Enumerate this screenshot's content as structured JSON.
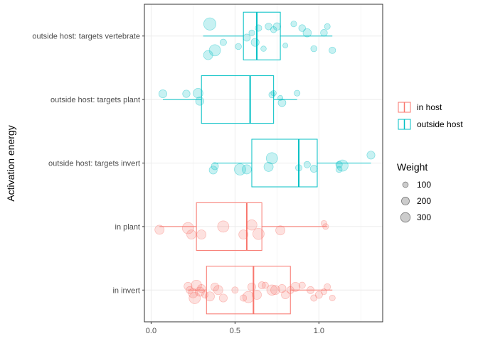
{
  "chart_data": {
    "type": "boxplot",
    "orientation": "horizontal",
    "ylabel": "Activation energy",
    "xlabel": "",
    "xlim": [
      -0.04,
      1.38
    ],
    "x_ticks": [
      0,
      0.5,
      1
    ],
    "x_tick_labels": [
      "0.0",
      "0.5",
      "1.0"
    ],
    "grid": true,
    "legend_placement": "right",
    "legend": {
      "color_entries": [
        {
          "label": "in host",
          "color": "#F8766D"
        },
        {
          "label": "outside host",
          "color": "#00BFC4"
        }
      ],
      "size_title": "Weight",
      "size_entries": [
        {
          "label": "100",
          "value": 100
        },
        {
          "label": "200",
          "value": 200
        },
        {
          "label": "300",
          "value": 300
        }
      ]
    },
    "categories": [
      "outside host: targets vertebrate",
      "outside host: targets plant",
      "outside host: targets invert",
      "in plant",
      "in invert"
    ],
    "boxes": [
      {
        "category": "outside host: targets vertebrate",
        "group": "outside host",
        "whisker_low": 0.31,
        "q1": 0.55,
        "median": 0.63,
        "q3": 0.77,
        "whisker_high": 1.08
      },
      {
        "category": "outside host: targets plant",
        "group": "outside host",
        "whisker_low": 0.07,
        "q1": 0.3,
        "median": 0.59,
        "q3": 0.73,
        "whisker_high": 0.87
      },
      {
        "category": "outside host: targets invert",
        "group": "outside host",
        "whisker_low": 0.37,
        "q1": 0.6,
        "median": 0.88,
        "q3": 0.99,
        "whisker_high": 1.31
      },
      {
        "category": "in plant",
        "group": "in host",
        "whisker_low": 0.05,
        "q1": 0.27,
        "median": 0.57,
        "q3": 0.66,
        "whisker_high": 1.05
      },
      {
        "category": "in invert",
        "group": "in host",
        "whisker_low": 0.22,
        "q1": 0.33,
        "median": 0.61,
        "q3": 0.83,
        "whisker_high": 1.08
      }
    ],
    "points": [
      {
        "category": "outside host: targets vertebrate",
        "x": 0.34,
        "y": 0.6,
        "weight": 200
      },
      {
        "category": "outside host: targets vertebrate",
        "x": 0.38,
        "y": 0.45,
        "weight": 300
      },
      {
        "category": "outside host: targets vertebrate",
        "x": 0.35,
        "y": -0.38,
        "weight": 350
      },
      {
        "category": "outside host: targets vertebrate",
        "x": 0.43,
        "y": 0.2,
        "weight": 100
      },
      {
        "category": "outside host: targets vertebrate",
        "x": 0.52,
        "y": 0.33,
        "weight": 90
      },
      {
        "category": "outside host: targets vertebrate",
        "x": 0.57,
        "y": 0.05,
        "weight": 120
      },
      {
        "category": "outside host: targets vertebrate",
        "x": 0.6,
        "y": -0.1,
        "weight": 80
      },
      {
        "category": "outside host: targets vertebrate",
        "x": 0.62,
        "y": 0.2,
        "weight": 150
      },
      {
        "category": "outside host: targets vertebrate",
        "x": 0.64,
        "y": -0.25,
        "weight": 100
      },
      {
        "category": "outside host: targets vertebrate",
        "x": 0.67,
        "y": 0.4,
        "weight": 70
      },
      {
        "category": "outside host: targets vertebrate",
        "x": 0.7,
        "y": -0.3,
        "weight": 110
      },
      {
        "category": "outside host: targets vertebrate",
        "x": 0.73,
        "y": -0.2,
        "weight": 90
      },
      {
        "category": "outside host: targets vertebrate",
        "x": 0.75,
        "y": -0.3,
        "weight": 130
      },
      {
        "category": "outside host: targets vertebrate",
        "x": 0.8,
        "y": 0.3,
        "weight": 60
      },
      {
        "category": "outside host: targets vertebrate",
        "x": 0.85,
        "y": -0.38,
        "weight": 80
      },
      {
        "category": "outside host: targets vertebrate",
        "x": 0.9,
        "y": -0.25,
        "weight": 110
      },
      {
        "category": "outside host: targets vertebrate",
        "x": 0.93,
        "y": -0.1,
        "weight": 160
      },
      {
        "category": "outside host: targets vertebrate",
        "x": 0.97,
        "y": 0.4,
        "weight": 90
      },
      {
        "category": "outside host: targets vertebrate",
        "x": 1.03,
        "y": -0.1,
        "weight": 110
      },
      {
        "category": "outside host: targets vertebrate",
        "x": 1.05,
        "y": -0.3,
        "weight": 80
      },
      {
        "category": "outside host: targets vertebrate",
        "x": 1.08,
        "y": 0.45,
        "weight": 100
      },
      {
        "category": "outside host: targets plant",
        "x": 0.07,
        "y": -0.18,
        "weight": 150
      },
      {
        "category": "outside host: targets plant",
        "x": 0.21,
        "y": -0.18,
        "weight": 130
      },
      {
        "category": "outside host: targets plant",
        "x": 0.28,
        "y": -0.2,
        "weight": 220
      },
      {
        "category": "outside host: targets plant",
        "x": 0.29,
        "y": 0.05,
        "weight": 160
      },
      {
        "category": "outside host: targets plant",
        "x": 0.72,
        "y": -0.15,
        "weight": 90
      },
      {
        "category": "outside host: targets plant",
        "x": 0.73,
        "y": -0.2,
        "weight": 70
      },
      {
        "category": "outside host: targets plant",
        "x": 0.78,
        "y": 0.1,
        "weight": 140
      },
      {
        "category": "outside host: targets plant",
        "x": 0.77,
        "y": -0.05,
        "weight": 60
      },
      {
        "category": "outside host: targets plant",
        "x": 0.87,
        "y": -0.2,
        "weight": 80
      },
      {
        "category": "outside host: targets invert",
        "x": 0.37,
        "y": 0.22,
        "weight": 150
      },
      {
        "category": "outside host: targets invert",
        "x": 0.38,
        "y": 0.1,
        "weight": 120
      },
      {
        "category": "outside host: targets invert",
        "x": 0.53,
        "y": 0.2,
        "weight": 300
      },
      {
        "category": "outside host: targets invert",
        "x": 0.57,
        "y": 0.2,
        "weight": 200
      },
      {
        "category": "outside host: targets invert",
        "x": 0.7,
        "y": 0.12,
        "weight": 200
      },
      {
        "category": "outside host: targets invert",
        "x": 0.72,
        "y": -0.15,
        "weight": 300
      },
      {
        "category": "outside host: targets invert",
        "x": 0.88,
        "y": 0.15,
        "weight": 100
      },
      {
        "category": "outside host: targets invert",
        "x": 0.93,
        "y": 0.05,
        "weight": 100
      },
      {
        "category": "outside host: targets invert",
        "x": 0.97,
        "y": 0.18,
        "weight": 120
      },
      {
        "category": "outside host: targets invert",
        "x": 1.12,
        "y": 0.2,
        "weight": 90
      },
      {
        "category": "outside host: targets invert",
        "x": 1.12,
        "y": 0.05,
        "weight": 100
      },
      {
        "category": "outside host: targets invert",
        "x": 1.14,
        "y": 0.08,
        "weight": 300
      },
      {
        "category": "outside host: targets invert",
        "x": 1.31,
        "y": -0.25,
        "weight": 150
      },
      {
        "category": "in plant",
        "x": 0.05,
        "y": 0.1,
        "weight": 200
      },
      {
        "category": "in plant",
        "x": 0.22,
        "y": 0.05,
        "weight": 300
      },
      {
        "category": "in plant",
        "x": 0.24,
        "y": 0.25,
        "weight": 200
      },
      {
        "category": "in plant",
        "x": 0.3,
        "y": 0.25,
        "weight": 200
      },
      {
        "category": "in plant",
        "x": 0.43,
        "y": 0.0,
        "weight": 300
      },
      {
        "category": "in plant",
        "x": 0.55,
        "y": 0.25,
        "weight": 200
      },
      {
        "category": "in plant",
        "x": 0.6,
        "y": -0.05,
        "weight": 250
      },
      {
        "category": "in plant",
        "x": 0.64,
        "y": 0.23,
        "weight": 300
      },
      {
        "category": "in plant",
        "x": 0.77,
        "y": 0.12,
        "weight": 200
      },
      {
        "category": "in plant",
        "x": 1.04,
        "y": 0.0,
        "weight": 80
      },
      {
        "category": "in plant",
        "x": 1.03,
        "y": -0.1,
        "weight": 80
      },
      {
        "category": "in invert",
        "x": 0.22,
        "y": -0.12,
        "weight": 150
      },
      {
        "category": "in invert",
        "x": 0.23,
        "y": 0.0,
        "weight": 120
      },
      {
        "category": "in invert",
        "x": 0.25,
        "y": 0.1,
        "weight": 200
      },
      {
        "category": "in invert",
        "x": 0.26,
        "y": 0.25,
        "weight": 300
      },
      {
        "category": "in invert",
        "x": 0.27,
        "y": -0.15,
        "weight": 250
      },
      {
        "category": "in invert",
        "x": 0.29,
        "y": 0.05,
        "weight": 200
      },
      {
        "category": "in invert",
        "x": 0.3,
        "y": -0.05,
        "weight": 150
      },
      {
        "category": "in invert",
        "x": 0.32,
        "y": 0.15,
        "weight": 100
      },
      {
        "category": "in invert",
        "x": 0.35,
        "y": 0.2,
        "weight": 200
      },
      {
        "category": "in invert",
        "x": 0.38,
        "y": -0.1,
        "weight": 150
      },
      {
        "category": "in invert",
        "x": 0.4,
        "y": 0.0,
        "weight": 200
      },
      {
        "category": "in invert",
        "x": 0.43,
        "y": 0.25,
        "weight": 150
      },
      {
        "category": "in invert",
        "x": 0.5,
        "y": 0.0,
        "weight": 100
      },
      {
        "category": "in invert",
        "x": 0.55,
        "y": 0.25,
        "weight": 100
      },
      {
        "category": "in invert",
        "x": 0.58,
        "y": 0.22,
        "weight": 300
      },
      {
        "category": "in invert",
        "x": 0.6,
        "y": -0.1,
        "weight": 150
      },
      {
        "category": "in invert",
        "x": 0.63,
        "y": 0.15,
        "weight": 200
      },
      {
        "category": "in invert",
        "x": 0.66,
        "y": -0.15,
        "weight": 120
      },
      {
        "category": "in invert",
        "x": 0.68,
        "y": -0.15,
        "weight": 100
      },
      {
        "category": "in invert",
        "x": 0.72,
        "y": 0.0,
        "weight": 250
      },
      {
        "category": "in invert",
        "x": 0.74,
        "y": 0.0,
        "weight": 200
      },
      {
        "category": "in invert",
        "x": 0.78,
        "y": -0.05,
        "weight": 150
      },
      {
        "category": "in invert",
        "x": 0.8,
        "y": 0.15,
        "weight": 150
      },
      {
        "category": "in invert",
        "x": 0.83,
        "y": 0.0,
        "weight": 120
      },
      {
        "category": "in invert",
        "x": 0.86,
        "y": -0.1,
        "weight": 200
      },
      {
        "category": "in invert",
        "x": 0.9,
        "y": -0.15,
        "weight": 100
      },
      {
        "category": "in invert",
        "x": 0.95,
        "y": 0.0,
        "weight": 120
      },
      {
        "category": "in invert",
        "x": 0.97,
        "y": 0.25,
        "weight": 100
      },
      {
        "category": "in invert",
        "x": 1.0,
        "y": 0.15,
        "weight": 120
      },
      {
        "category": "in invert",
        "x": 1.03,
        "y": 0.05,
        "weight": 80
      },
      {
        "category": "in invert",
        "x": 1.05,
        "y": -0.1,
        "weight": 100
      },
      {
        "category": "in invert",
        "x": 1.08,
        "y": 0.25,
        "weight": 80
      }
    ]
  }
}
